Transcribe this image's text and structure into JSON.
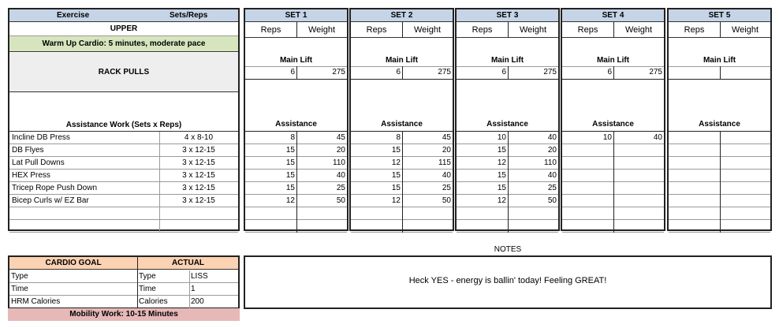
{
  "left": {
    "header_exercise": "Exercise",
    "header_sets_reps": "Sets/Reps",
    "title": "UPPER",
    "warmup": "Warm Up Cardio: 5 minutes, moderate pace",
    "main_exercise": "RACK PULLS",
    "assistance_label": "Assistance Work (Sets x Reps)",
    "exercises": [
      {
        "name": "Incline DB Press",
        "scheme": "4 x 8-10"
      },
      {
        "name": "DB Flyes",
        "scheme": "3 x 12-15"
      },
      {
        "name": "Lat Pull Downs",
        "scheme": "3 x 12-15"
      },
      {
        "name": "HEX Press",
        "scheme": "3 x 12-15"
      },
      {
        "name": "Tricep Rope Push Down",
        "scheme": "3 x  12-15"
      },
      {
        "name": "Bicep Curls w/ EZ Bar",
        "scheme": "3 x 12-15"
      }
    ]
  },
  "sets": [
    {
      "title": "SET 1",
      "reps_label": "Reps",
      "weight_label": "Weight",
      "main_lift_label": "Main Lift",
      "main": {
        "reps": "6",
        "weight": "275"
      },
      "assistance_label": "Assistance",
      "rows": [
        [
          "8",
          "45"
        ],
        [
          "15",
          "20"
        ],
        [
          "15",
          "110"
        ],
        [
          "15",
          "40"
        ],
        [
          "15",
          "25"
        ],
        [
          "12",
          "50"
        ]
      ]
    },
    {
      "title": "SET 2",
      "reps_label": "Reps",
      "weight_label": "Weight",
      "main_lift_label": "Main Lift",
      "main": {
        "reps": "6",
        "weight": "275"
      },
      "assistance_label": "Assistance",
      "rows": [
        [
          "8",
          "45"
        ],
        [
          "15",
          "20"
        ],
        [
          "12",
          "115"
        ],
        [
          "15",
          "40"
        ],
        [
          "15",
          "25"
        ],
        [
          "12",
          "50"
        ]
      ]
    },
    {
      "title": "SET 3",
      "reps_label": "Reps",
      "weight_label": "Weight",
      "main_lift_label": "Main Lift",
      "main": {
        "reps": "6",
        "weight": "275"
      },
      "assistance_label": "Assistance",
      "rows": [
        [
          "10",
          "40"
        ],
        [
          "15",
          "20"
        ],
        [
          "12",
          "110"
        ],
        [
          "15",
          "40"
        ],
        [
          "15",
          "25"
        ],
        [
          "12",
          "50"
        ]
      ]
    },
    {
      "title": "SET 4",
      "reps_label": "Reps",
      "weight_label": "Weight",
      "main_lift_label": "Main Lift",
      "main": {
        "reps": "6",
        "weight": "275"
      },
      "assistance_label": "Assistance",
      "rows": [
        [
          "10",
          "40"
        ],
        [
          "",
          ""
        ],
        [
          "",
          ""
        ],
        [
          "",
          ""
        ],
        [
          "",
          ""
        ],
        [
          "",
          ""
        ]
      ]
    },
    {
      "title": "SET 5",
      "reps_label": "Reps",
      "weight_label": "Weight",
      "main_lift_label": "Main Lift",
      "main": {
        "reps": "",
        "weight": ""
      },
      "assistance_label": "Assistance",
      "rows": [
        [
          "",
          ""
        ],
        [
          "",
          ""
        ],
        [
          "",
          ""
        ],
        [
          "",
          ""
        ],
        [
          "",
          ""
        ],
        [
          "",
          ""
        ]
      ]
    }
  ],
  "cardio": {
    "goal_header": "CARDIO GOAL",
    "actual_header": "ACTUAL",
    "rows": [
      {
        "goal_label": "Type",
        "goal_value": "",
        "actual_label": "Type",
        "actual_value": "LISS"
      },
      {
        "goal_label": "Time",
        "goal_value": "",
        "actual_label": "Time",
        "actual_value": "1"
      },
      {
        "goal_label": "HRM Calories",
        "goal_value": "",
        "actual_label": "Calories",
        "actual_value": "200"
      }
    ],
    "mobility": "Mobility Work: 10-15 Minutes"
  },
  "notes": {
    "title": "NOTES",
    "text": "Heck YES - energy is ballin' today! Feeling GREAT!"
  },
  "colors": {
    "header_blue": "#c5d4e6",
    "warmup_green": "#d6e5be",
    "main_gray": "#eeeeee",
    "cardio_orange": "#fbd2b2",
    "mobility_pink": "#e6b8b8"
  }
}
